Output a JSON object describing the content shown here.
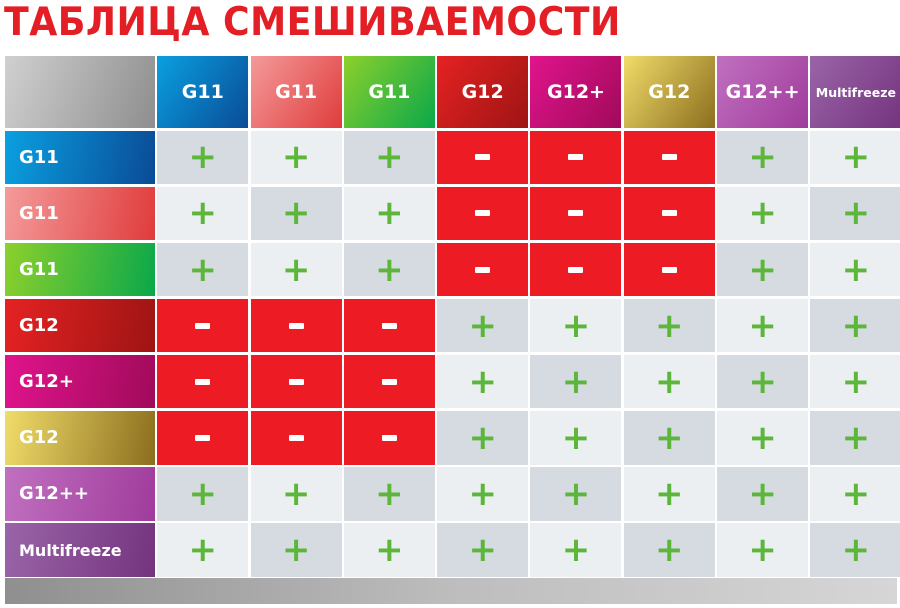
{
  "title": "ТАБЛИЦА СМЕШИВАЕМОСТИ",
  "corner_gradient": [
    "#d0d0d0",
    "#8e8e8e"
  ],
  "types": [
    {
      "label": "G11",
      "colors": [
        "#0aa0e0",
        "#0a4b96"
      ]
    },
    {
      "label": "G11",
      "colors": [
        "#f49a9a",
        "#e03c3c"
      ]
    },
    {
      "label": "G11",
      "colors": [
        "#8cd02c",
        "#0aa84a"
      ]
    },
    {
      "label": "G12",
      "colors": [
        "#e52222",
        "#9e1414"
      ]
    },
    {
      "label": "G12+",
      "colors": [
        "#e0148c",
        "#a00a5a"
      ]
    },
    {
      "label": "G12",
      "colors": [
        "#f0dc6a",
        "#8c6e1e"
      ]
    },
    {
      "label": "G12++",
      "colors": [
        "#c070c0",
        "#a03c9c"
      ]
    },
    {
      "label": "Multifreeze",
      "colors": [
        "#9a64a8",
        "#74347e"
      ]
    }
  ],
  "matrix": [
    [
      "+",
      "+",
      "+",
      "-",
      "-",
      "-",
      "+",
      "+"
    ],
    [
      "+",
      "+",
      "+",
      "-",
      "-",
      "-",
      "+",
      "+"
    ],
    [
      "+",
      "+",
      "+",
      "-",
      "-",
      "-",
      "+",
      "+"
    ],
    [
      "-",
      "-",
      "-",
      "+",
      "+",
      "+",
      "+",
      "+"
    ],
    [
      "-",
      "-",
      "-",
      "+",
      "+",
      "+",
      "+",
      "+"
    ],
    [
      "-",
      "-",
      "-",
      "+",
      "+",
      "+",
      "+",
      "+"
    ],
    [
      "+",
      "+",
      "+",
      "+",
      "+",
      "+",
      "+",
      "+"
    ],
    [
      "+",
      "+",
      "+",
      "+",
      "+",
      "+",
      "+",
      "+"
    ]
  ],
  "colors": {
    "incompatible": "#ed1c24",
    "compatible_dark": "#d5dbe1",
    "compatible_light": "#eceff2",
    "plus": "#5cb63a",
    "title": "#e31e24"
  }
}
